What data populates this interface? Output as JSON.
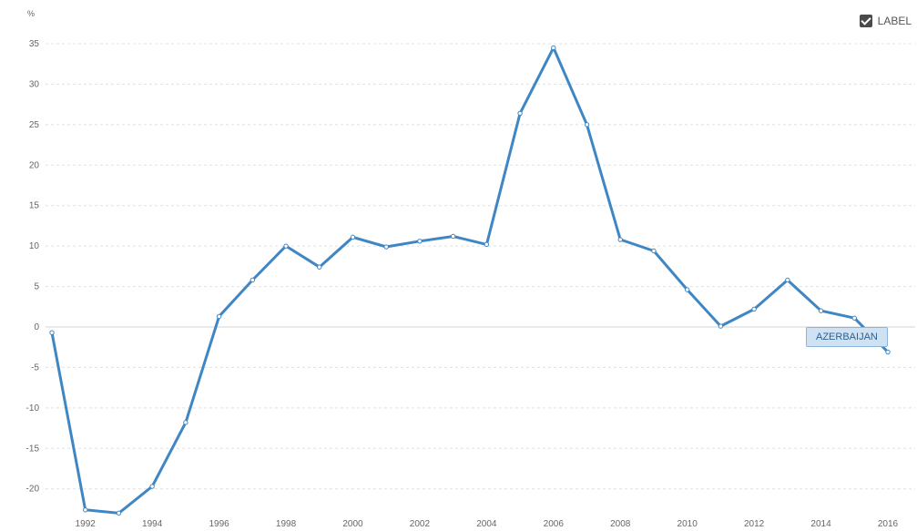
{
  "header": {
    "unit_label": "%"
  },
  "controls": {
    "label_toggle_text": "LABEL",
    "label_checked": true
  },
  "colors": {
    "line": "#3f86c4",
    "grid": "#e0e0e0",
    "zero_line": "#d6d6d6",
    "tag_background": "#cfe2f3",
    "tag_border": "#8bb5db"
  },
  "chart_data": {
    "type": "line",
    "title": "",
    "xlabel": "",
    "ylabel": "%",
    "xlim": [
      1991,
      2016.5
    ],
    "ylim": [
      -23,
      35
    ],
    "yticks": [
      35,
      30,
      25,
      20,
      15,
      10,
      5,
      0,
      -5,
      -10,
      -15,
      -20
    ],
    "xticks": [
      1992,
      1994,
      1996,
      1998,
      2000,
      2002,
      2004,
      2006,
      2008,
      2010,
      2012,
      2014,
      2016
    ],
    "grid": true,
    "series": [
      {
        "name": "AZERBAIJAN",
        "x": [
          1991,
          1992,
          1993,
          1994,
          1995,
          1996,
          1997,
          1998,
          1999,
          2000,
          2001,
          2002,
          2003,
          2004,
          2005,
          2006,
          2007,
          2008,
          2009,
          2010,
          2011,
          2012,
          2013,
          2014,
          2015,
          2016
        ],
        "y": [
          -0.7,
          -22.6,
          -23.0,
          -19.7,
          -11.8,
          1.3,
          5.8,
          10.0,
          7.4,
          11.1,
          9.9,
          10.6,
          11.2,
          10.2,
          26.4,
          34.5,
          25.0,
          10.8,
          9.4,
          4.6,
          0.1,
          2.2,
          5.8,
          2.0,
          1.1,
          -3.1
        ]
      }
    ]
  }
}
